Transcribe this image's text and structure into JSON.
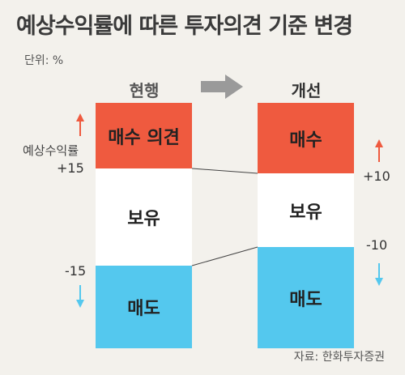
{
  "title": "예상수익률에 따른 투자의견 기준 변경",
  "unit": "단위: %",
  "columns": {
    "current": "현행",
    "improved": "개선"
  },
  "current_blocks": {
    "buy": "매수 의견",
    "hold": "보유",
    "sell": "매도"
  },
  "improved_blocks": {
    "buy": "매수",
    "hold": "보유",
    "sell": "매도"
  },
  "axis_label": "예상수익률",
  "thresholds": {
    "current_upper": "+15",
    "current_lower": "-15",
    "improved_upper": "+10",
    "improved_lower": "-10"
  },
  "source": "자료: 한화투자증권",
  "colors": {
    "buy": "#ef5a3f",
    "hold": "#ffffff",
    "sell": "#54c8ee",
    "up_arrow": "#ef5a3f",
    "down_arrow": "#54c8ee",
    "big_arrow": "#9a9a9a"
  },
  "icons": {
    "big_arrow": "right-arrow-icon",
    "up_arrow": "up-arrow-icon",
    "down_arrow": "down-arrow-icon"
  }
}
